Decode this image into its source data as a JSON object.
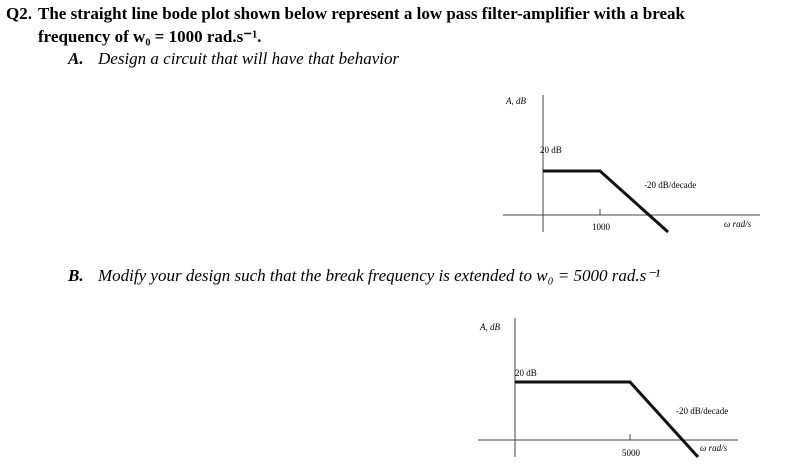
{
  "question": {
    "number": "Q2.",
    "line1": "The straight line bode plot shown below represent a low pass filter-amplifier with a break",
    "line2": "frequency of w₀ = 1000 rad.s⁻¹."
  },
  "part_a": {
    "label": "A.",
    "text": "Design a circuit that will have that behavior",
    "plot": {
      "y_label": "A, dB",
      "gain_label": "20 dB",
      "slope_label": "-20 dB/decade",
      "break_label": "1000",
      "x_label": "ω  rad/s"
    }
  },
  "part_b": {
    "label": "B.",
    "text": "Modify your design such that the break frequency is extended to w₀ = 5000 rad.s⁻¹",
    "plot": {
      "y_label": "A, dB",
      "gain_label": "20 dB",
      "slope_label": "-20 dB/decade",
      "break_label": "5000",
      "x_label": "ω  rad/s"
    }
  }
}
